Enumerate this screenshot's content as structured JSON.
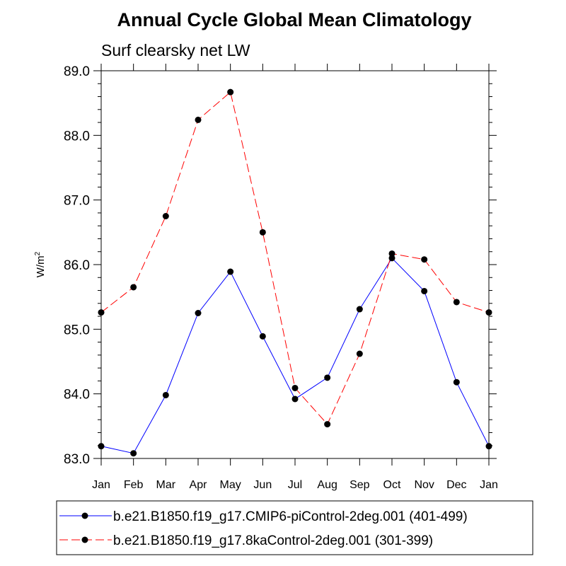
{
  "chart_data": {
    "type": "line",
    "title": "Annual Cycle Global Mean Climatology",
    "subtitle": "Surf clearsky net LW",
    "ylabel": "W/m",
    "ylabel_superscript": "2",
    "xlabel": "",
    "categories": [
      "Jan",
      "Feb",
      "Mar",
      "Apr",
      "May",
      "Jun",
      "Jul",
      "Aug",
      "Sep",
      "Oct",
      "Nov",
      "Dec",
      "Jan"
    ],
    "ylim": [
      83.0,
      89.0
    ],
    "yticks": [
      "83.0",
      "84.0",
      "85.0",
      "86.0",
      "87.0",
      "88.0",
      "89.0"
    ],
    "series": [
      {
        "name": "b.e21.B1850.f19_g17.CMIP6-piControl-2deg.001 (401-499)",
        "color": "#0000ff",
        "dash": "solid",
        "values": [
          83.19,
          83.08,
          83.98,
          85.25,
          85.89,
          84.89,
          83.92,
          84.25,
          85.31,
          86.1,
          85.59,
          84.18,
          83.19
        ]
      },
      {
        "name": "b.e21.B1850.f19_g17.8kaControl-2deg.001 (301-399)",
        "color": "#ff0000",
        "dash": "dashed",
        "values": [
          85.26,
          85.65,
          86.75,
          88.24,
          88.67,
          86.5,
          84.09,
          83.53,
          84.62,
          86.17,
          86.08,
          85.42,
          85.26
        ]
      }
    ],
    "legend_position": "bottom",
    "marker_color": "#000000"
  }
}
